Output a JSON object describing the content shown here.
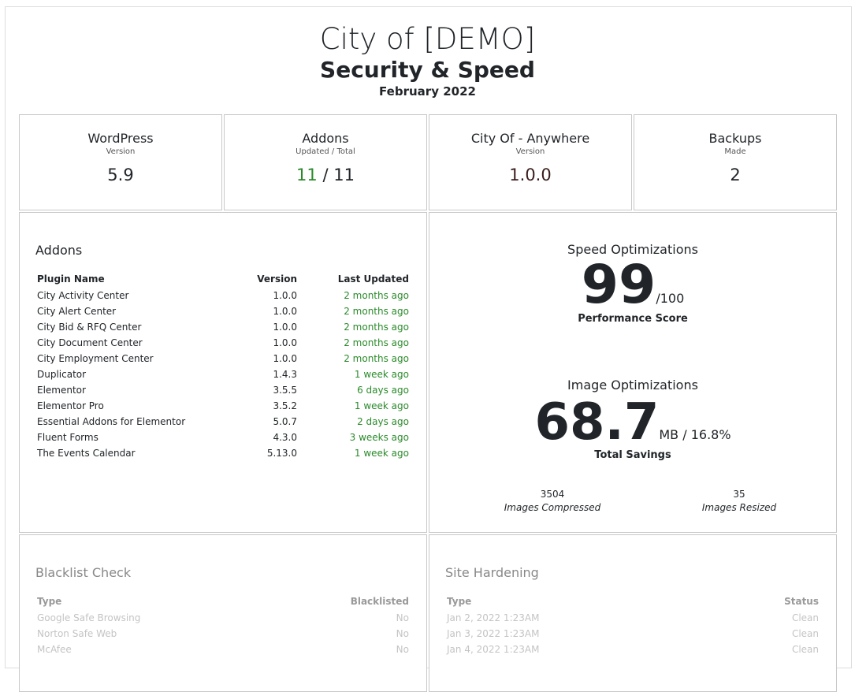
{
  "header": {
    "title": "City of [DEMO]",
    "subtitle": "Security & Speed",
    "date": "February 2022"
  },
  "stats": [
    {
      "title": "WordPress",
      "sub": "Version",
      "value": "5.9"
    },
    {
      "title": "Addons",
      "sub": "Updated / Total",
      "updated": "11",
      "total": "11"
    },
    {
      "title": "City Of - Anywhere",
      "sub": "Version",
      "value": "1.0.0"
    },
    {
      "title": "Backups",
      "sub": "Made",
      "value": "2"
    }
  ],
  "addons": {
    "title": "Addons",
    "columns": [
      "Plugin Name",
      "Version",
      "Last Updated"
    ],
    "rows": [
      [
        "City Activity Center",
        "1.0.0",
        "2 months ago"
      ],
      [
        "City Alert Center",
        "1.0.0",
        "2 months ago"
      ],
      [
        "City Bid & RFQ Center",
        "1.0.0",
        "2 months ago"
      ],
      [
        "City Document Center",
        "1.0.0",
        "2 months ago"
      ],
      [
        "City Employment Center",
        "1.0.0",
        "2 months ago"
      ],
      [
        "Duplicator",
        "1.4.3",
        "1 week ago"
      ],
      [
        "Elementor",
        "3.5.5",
        "6 days ago"
      ],
      [
        "Elementor Pro",
        "3.5.2",
        "1 week ago"
      ],
      [
        "Essential Addons for Elementor",
        "5.0.7",
        "2 days ago"
      ],
      [
        "Fluent Forms",
        "4.3.0",
        "3 weeks ago"
      ],
      [
        "The Events Calendar",
        "5.13.0",
        "1 week ago"
      ]
    ]
  },
  "speed": {
    "title": "Speed Optimizations",
    "score": "99",
    "max": "/100",
    "label": "Performance Score"
  },
  "images": {
    "title": "Image Optimizations",
    "savings": "68.7",
    "unit": "MB / 16.8%",
    "label": "Total Savings",
    "compressed": "3504",
    "compressed_label": "Images Compressed",
    "resized": "35",
    "resized_label": "Images Resized"
  },
  "blacklist": {
    "title": "Blacklist Check",
    "columns": [
      "Type",
      "Blacklisted"
    ],
    "rows": [
      [
        "Google Safe Browsing",
        "No"
      ],
      [
        "Norton Safe Web",
        "No"
      ],
      [
        "McAfee",
        "No"
      ]
    ]
  },
  "hardening": {
    "title": "Site Hardening",
    "columns": [
      "Type",
      "Status"
    ],
    "rows": [
      [
        "Jan 2, 2022 1:23AM",
        "Clean"
      ],
      [
        "Jan 3, 2022 1:23AM",
        "Clean"
      ],
      [
        "Jan 4, 2022 1:23AM",
        "Clean"
      ]
    ]
  },
  "colors": {
    "green": "#2a8a2a"
  }
}
